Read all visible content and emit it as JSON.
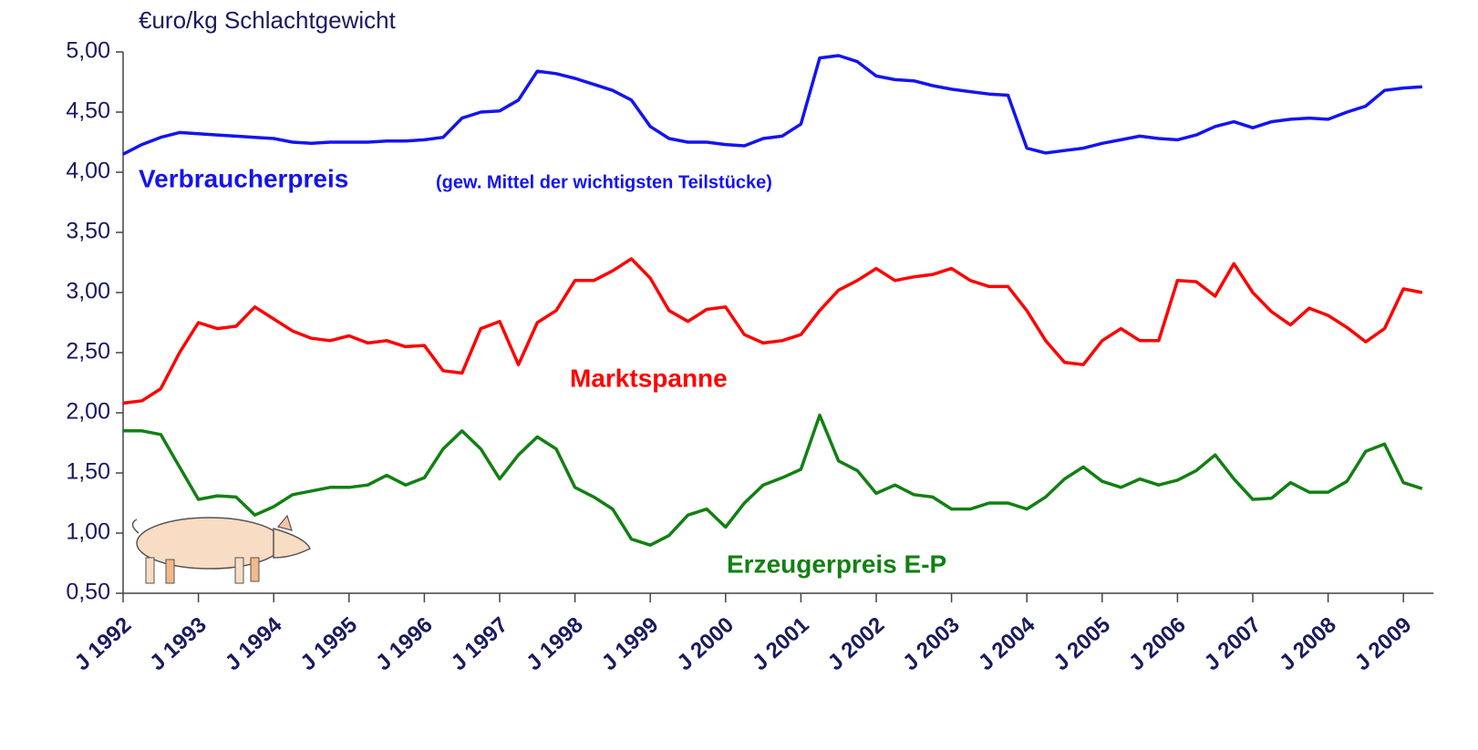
{
  "chart_data": {
    "type": "line",
    "ylabel": "€uro/kg Schlachtgewicht",
    "annotations": [
      "(gew. Mittel der wichtigsten Teilstücke)"
    ],
    "x": [
      1992,
      1992.25,
      1992.5,
      1992.75,
      1993,
      1993.25,
      1993.5,
      1993.75,
      1994,
      1994.25,
      1994.5,
      1994.75,
      1995,
      1995.25,
      1995.5,
      1995.75,
      1996,
      1996.25,
      1996.5,
      1996.75,
      1997,
      1997.25,
      1997.5,
      1997.75,
      1998,
      1998.25,
      1998.5,
      1998.75,
      1999,
      1999.25,
      1999.5,
      1999.75,
      2000,
      2000.25,
      2000.5,
      2000.75,
      2001,
      2001.25,
      2001.5,
      2001.75,
      2002,
      2002.25,
      2002.5,
      2002.75,
      2003,
      2003.25,
      2003.5,
      2003.75,
      2004,
      2004.25,
      2004.5,
      2004.75,
      2005,
      2005.25,
      2005.5,
      2005.75,
      2006,
      2006.25,
      2006.5,
      2006.75,
      2007,
      2007.25,
      2007.5,
      2007.75,
      2008,
      2008.25,
      2008.5,
      2008.75,
      2009,
      2009.25
    ],
    "series": [
      {
        "name": "Verbraucherpreis",
        "color": "#1414f0",
        "values": [
          4.15,
          4.23,
          4.29,
          4.33,
          4.32,
          4.31,
          4.3,
          4.29,
          4.28,
          4.25,
          4.24,
          4.25,
          4.25,
          4.25,
          4.26,
          4.26,
          4.27,
          4.29,
          4.45,
          4.5,
          4.51,
          4.6,
          4.84,
          4.82,
          4.78,
          4.73,
          4.68,
          4.6,
          4.38,
          4.28,
          4.25,
          4.25,
          4.23,
          4.22,
          4.28,
          4.3,
          4.4,
          4.95,
          4.97,
          4.92,
          4.8,
          4.77,
          4.76,
          4.72,
          4.69,
          4.67,
          4.65,
          4.64,
          4.2,
          4.16,
          4.18,
          4.2,
          4.24,
          4.27,
          4.3,
          4.28,
          4.27,
          4.31,
          4.38,
          4.42,
          4.37,
          4.42,
          4.44,
          4.45,
          4.44,
          4.5,
          4.55,
          4.68,
          4.7,
          4.71
        ]
      },
      {
        "name": "Marktspanne",
        "color": "#ff0000",
        "values": [
          2.08,
          2.1,
          2.2,
          2.5,
          2.75,
          2.7,
          2.72,
          2.88,
          2.78,
          2.68,
          2.62,
          2.6,
          2.64,
          2.58,
          2.6,
          2.55,
          2.56,
          2.35,
          2.33,
          2.7,
          2.76,
          2.4,
          2.75,
          2.85,
          3.1,
          3.1,
          3.18,
          3.28,
          3.12,
          2.85,
          2.76,
          2.86,
          2.88,
          2.65,
          2.58,
          2.6,
          2.65,
          2.85,
          3.02,
          3.1,
          3.2,
          3.1,
          3.13,
          3.15,
          3.2,
          3.1,
          3.05,
          3.05,
          2.85,
          2.6,
          2.42,
          2.4,
          2.6,
          2.7,
          2.6,
          2.6,
          3.1,
          3.09,
          2.97,
          3.24,
          3.0,
          2.84,
          2.73,
          2.87,
          2.81,
          2.71,
          2.59,
          2.7,
          3.03,
          3.0
        ]
      },
      {
        "name": "Erzeugerpreis E-P",
        "color": "#128012",
        "values": [
          1.85,
          1.85,
          1.82,
          1.55,
          1.28,
          1.31,
          1.3,
          1.15,
          1.22,
          1.32,
          1.35,
          1.38,
          1.38,
          1.4,
          1.48,
          1.4,
          1.46,
          1.7,
          1.85,
          1.7,
          1.45,
          1.65,
          1.8,
          1.7,
          1.38,
          1.3,
          1.2,
          0.95,
          0.9,
          0.98,
          1.15,
          1.2,
          1.05,
          1.25,
          1.4,
          1.46,
          1.53,
          1.98,
          1.6,
          1.52,
          1.33,
          1.4,
          1.32,
          1.3,
          1.2,
          1.2,
          1.25,
          1.25,
          1.2,
          1.3,
          1.45,
          1.55,
          1.43,
          1.38,
          1.45,
          1.4,
          1.44,
          1.52,
          1.65,
          1.45,
          1.28,
          1.29,
          1.42,
          1.34,
          1.34,
          1.43,
          1.68,
          1.74,
          1.42,
          1.37
        ]
      }
    ],
    "xlim": [
      1992,
      2009.4
    ],
    "xticks": [
      {
        "value": 1992,
        "label": "J 1992"
      },
      {
        "value": 1993,
        "label": "J 1993"
      },
      {
        "value": 1994,
        "label": "J 1994"
      },
      {
        "value": 1995,
        "label": "J 1995"
      },
      {
        "value": 1996,
        "label": "J 1996"
      },
      {
        "value": 1997,
        "label": "J 1997"
      },
      {
        "value": 1998,
        "label": "J 1998"
      },
      {
        "value": 1999,
        "label": "J 1999"
      },
      {
        "value": 2000,
        "label": "J 2000"
      },
      {
        "value": 2001,
        "label": "J 2001"
      },
      {
        "value": 2002,
        "label": "J 2002"
      },
      {
        "value": 2003,
        "label": "J 2003"
      },
      {
        "value": 2004,
        "label": "J 2004"
      },
      {
        "value": 2005,
        "label": "J 2005"
      },
      {
        "value": 2006,
        "label": "J 2006"
      },
      {
        "value": 2007,
        "label": "J 2007"
      },
      {
        "value": 2008,
        "label": "J 2008"
      },
      {
        "value": 2009,
        "label": "J 2009"
      }
    ],
    "ylim": [
      0.5,
      5
    ],
    "yticks": [
      {
        "value": 0.5,
        "label": "0,50"
      },
      {
        "value": 1,
        "label": "1,00"
      },
      {
        "value": 1.5,
        "label": "1,50"
      },
      {
        "value": 2,
        "label": "2,00"
      },
      {
        "value": 2.5,
        "label": "2,50"
      },
      {
        "value": 3,
        "label": "3,00"
      },
      {
        "value": 3.5,
        "label": "3,50"
      },
      {
        "value": 4,
        "label": "4,00"
      },
      {
        "value": 4.5,
        "label": "4,50"
      },
      {
        "value": 5,
        "label": "5,00"
      }
    ],
    "grid": false
  }
}
